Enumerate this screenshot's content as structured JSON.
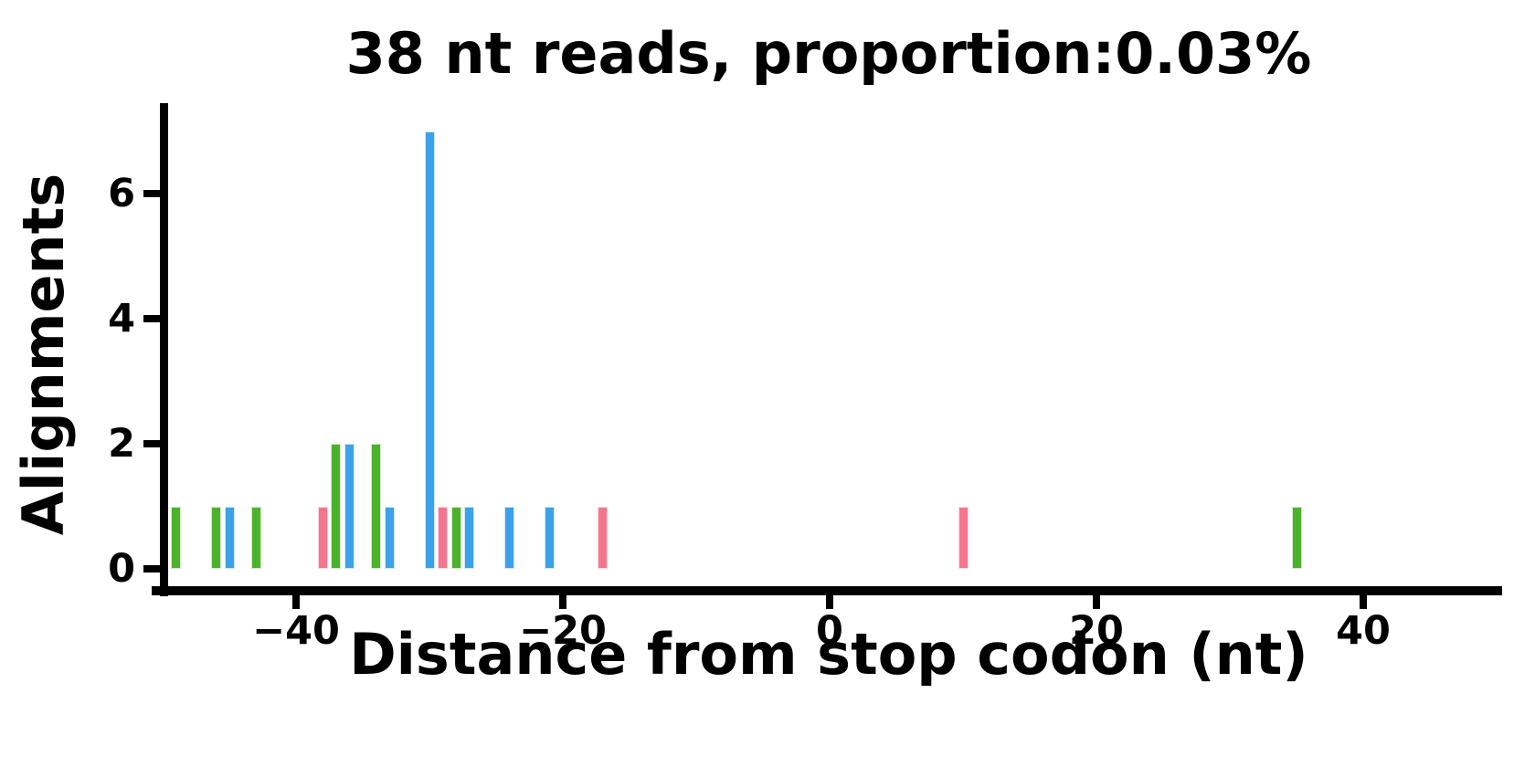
{
  "chart_data": {
    "type": "bar",
    "title": "38 nt reads, proportion:0.03%",
    "xlabel": "Distance from stop codon (nt)",
    "ylabel": "Alignments",
    "xlim": [
      -50.5,
      50.5
    ],
    "ylim": [
      -0.35,
      7.45
    ],
    "grid": false,
    "legend": "none",
    "xticks": [
      -40,
      -20,
      0,
      20,
      40
    ],
    "xtick_labels": [
      "−40",
      "−20",
      "0",
      "20",
      "40"
    ],
    "yticks": [
      0,
      2,
      4,
      6
    ],
    "ytick_labels": [
      "0",
      "2",
      "4",
      "6"
    ],
    "colors": {
      "green": "#4BB22C",
      "blue": "#3BA2EA",
      "pink": "#F7758C"
    },
    "bars": [
      {
        "x": -49,
        "height": 1,
        "color": "green"
      },
      {
        "x": -46,
        "height": 1,
        "color": "green"
      },
      {
        "x": -45,
        "height": 1,
        "color": "blue"
      },
      {
        "x": -43,
        "height": 1,
        "color": "green"
      },
      {
        "x": -38,
        "height": 1,
        "color": "pink"
      },
      {
        "x": -37,
        "height": 2,
        "color": "green"
      },
      {
        "x": -36,
        "height": 2,
        "color": "blue"
      },
      {
        "x": -34,
        "height": 2,
        "color": "green"
      },
      {
        "x": -33,
        "height": 1,
        "color": "blue"
      },
      {
        "x": -30,
        "height": 7,
        "color": "blue"
      },
      {
        "x": -29,
        "height": 1,
        "color": "pink"
      },
      {
        "x": -28,
        "height": 1,
        "color": "green"
      },
      {
        "x": -27,
        "height": 1,
        "color": "blue"
      },
      {
        "x": -24,
        "height": 1,
        "color": "blue"
      },
      {
        "x": -21,
        "height": 1,
        "color": "blue"
      },
      {
        "x": -17,
        "height": 1,
        "color": "pink"
      },
      {
        "x": 10,
        "height": 1,
        "color": "pink"
      },
      {
        "x": 35,
        "height": 1,
        "color": "green"
      }
    ]
  }
}
